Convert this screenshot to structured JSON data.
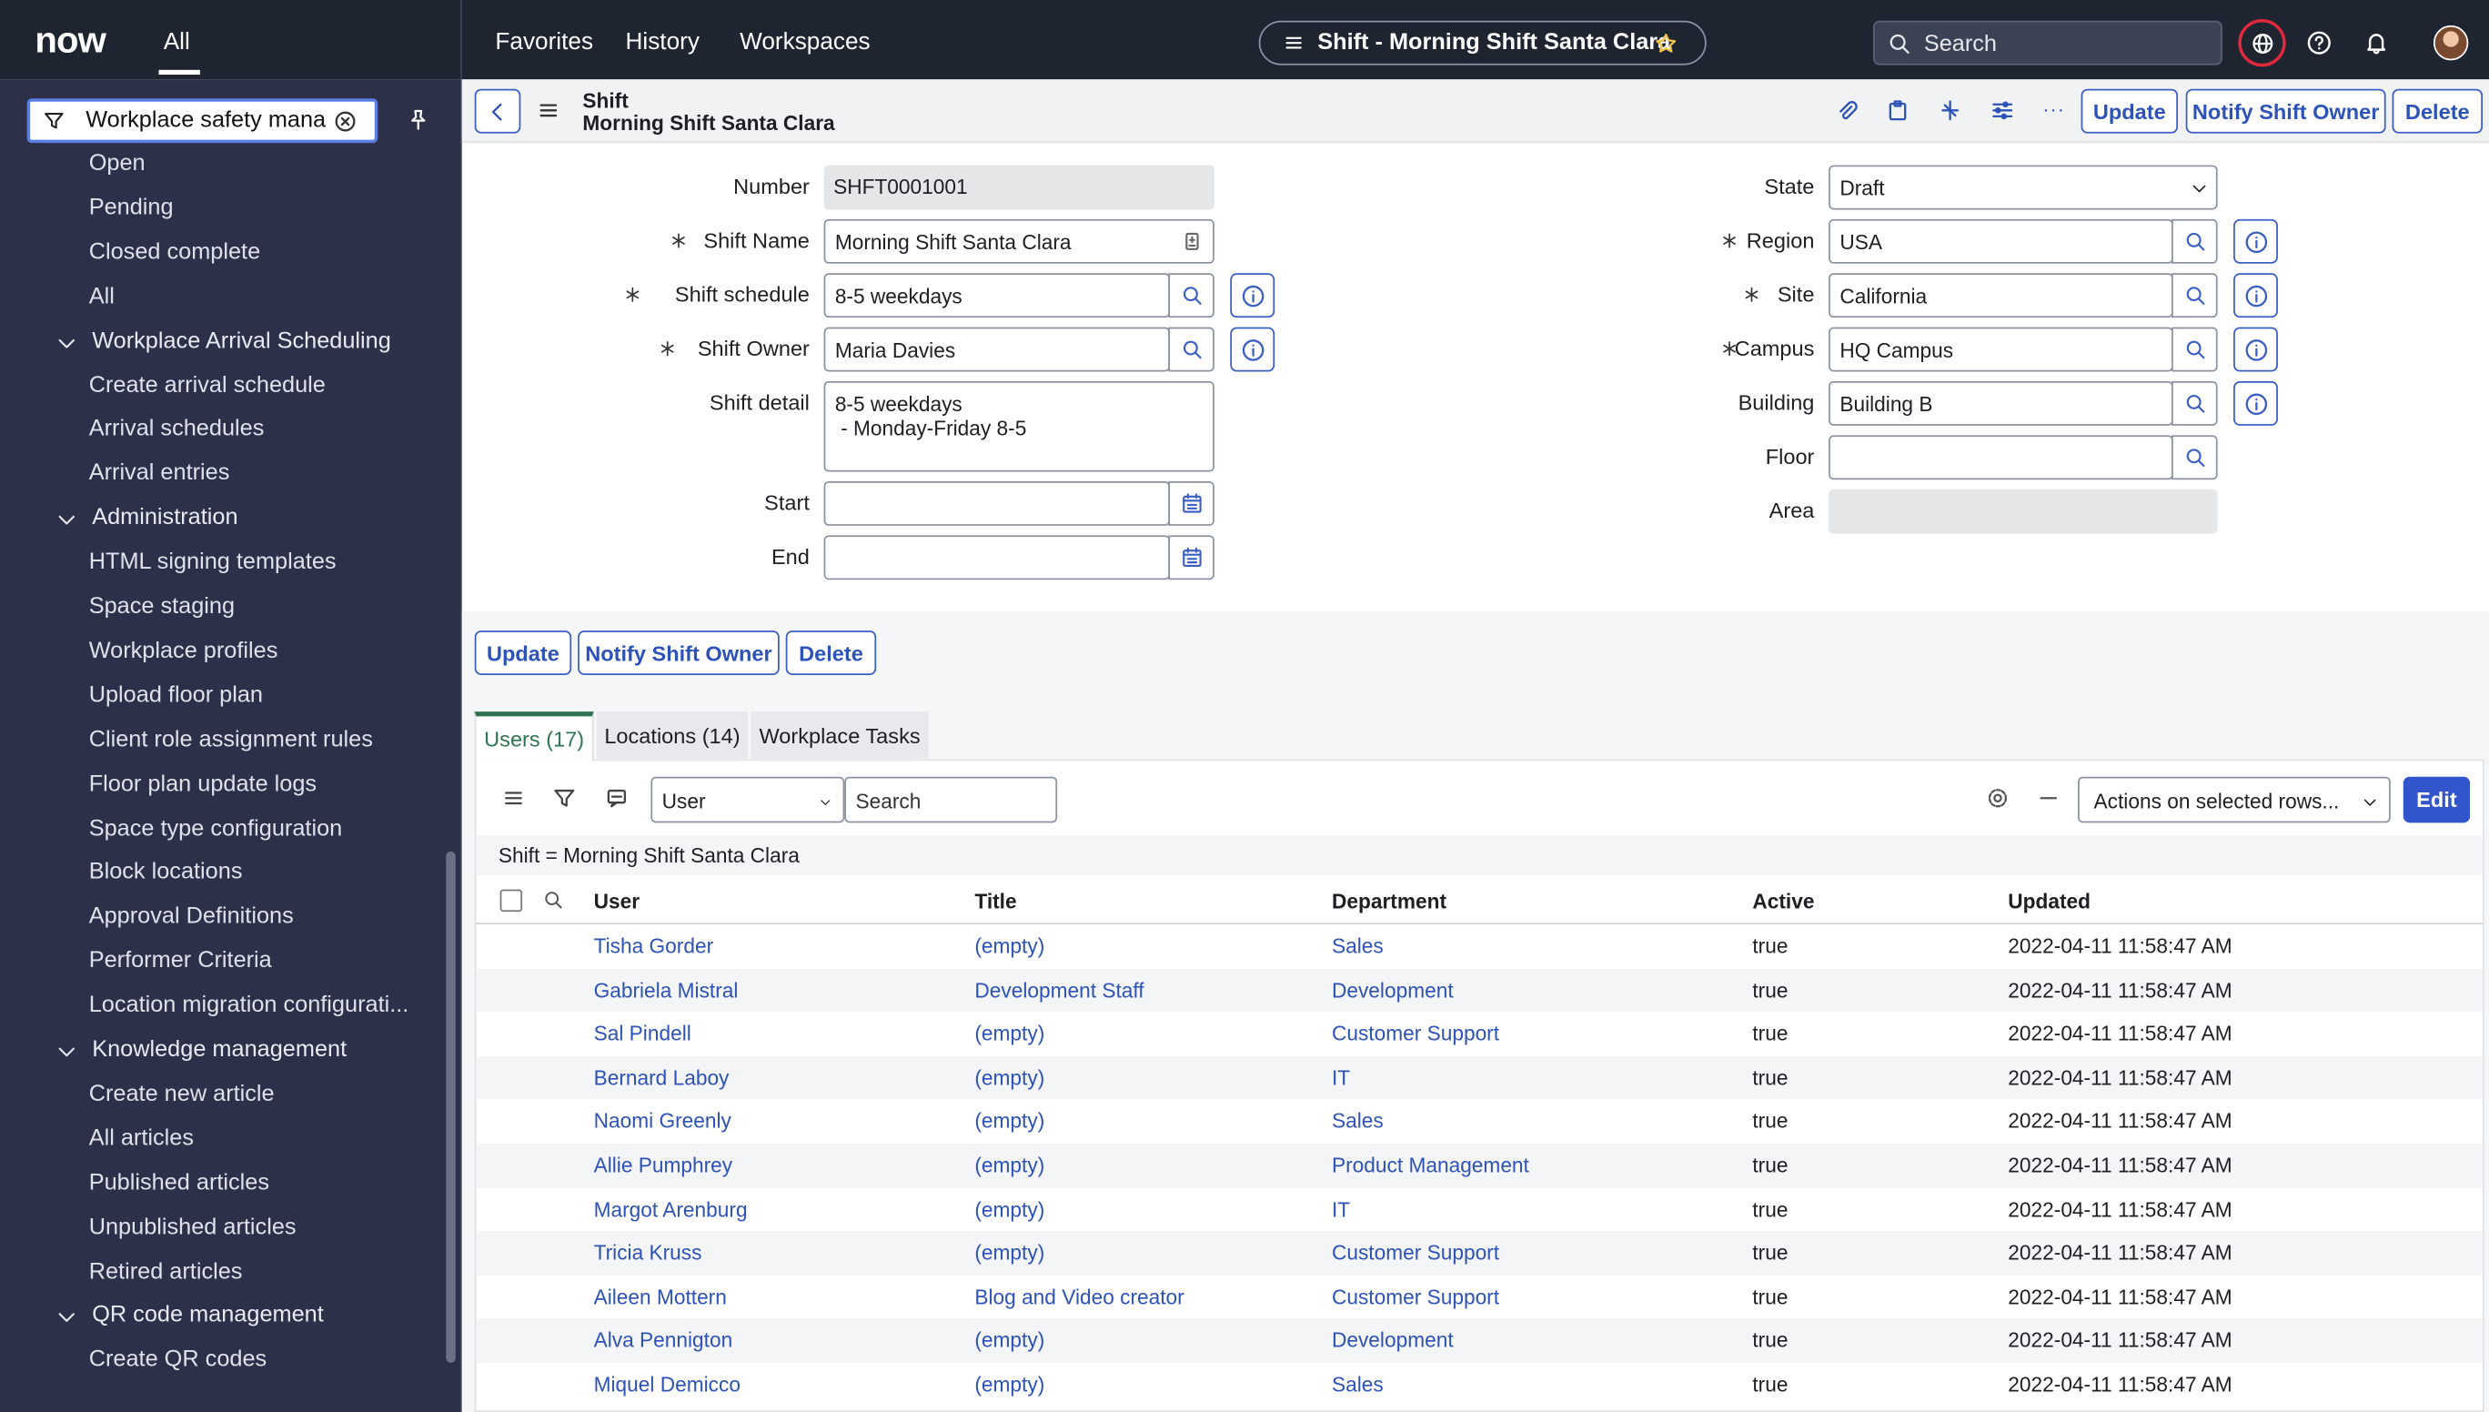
{
  "top_nav": {
    "logo": "now",
    "all": "All",
    "links": [
      "Favorites",
      "History",
      "Workspaces"
    ],
    "record": "Shift - Morning Shift Santa Clara",
    "search": "Search"
  },
  "sidebar": {
    "filter": "Workplace safety mana",
    "items": [
      {
        "label": "Open"
      },
      {
        "label": "Pending"
      },
      {
        "label": "Closed complete"
      },
      {
        "label": "All"
      },
      {
        "label": "Workplace Arrival Scheduling",
        "section": true
      },
      {
        "label": "Create arrival schedule"
      },
      {
        "label": "Arrival schedules"
      },
      {
        "label": "Arrival entries"
      },
      {
        "label": "Administration",
        "section": true
      },
      {
        "label": "HTML signing templates"
      },
      {
        "label": "Space staging"
      },
      {
        "label": "Workplace profiles"
      },
      {
        "label": "Upload floor plan"
      },
      {
        "label": "Client role assignment rules"
      },
      {
        "label": "Floor plan update logs"
      },
      {
        "label": "Space type configuration"
      },
      {
        "label": "Block locations"
      },
      {
        "label": "Approval Definitions"
      },
      {
        "label": "Performer Criteria"
      },
      {
        "label": "Location migration configurati..."
      },
      {
        "label": "Knowledge management",
        "section": true
      },
      {
        "label": "Create new article"
      },
      {
        "label": "All articles"
      },
      {
        "label": "Published articles"
      },
      {
        "label": "Unpublished articles"
      },
      {
        "label": "Retired articles"
      },
      {
        "label": "QR code management",
        "section": true
      },
      {
        "label": "Create QR codes"
      }
    ]
  },
  "header": {
    "table": "Shift",
    "record": "Morning Shift Santa Clara",
    "buttons": [
      "Update",
      "Notify Shift Owner",
      "Delete"
    ]
  },
  "form": {
    "left": [
      {
        "label": "Number",
        "value": "SHFT0001001",
        "control": "readonly"
      },
      {
        "label": "Shift Name",
        "value": "Morning Shift Santa Clara",
        "control": "text-icon",
        "required": true
      },
      {
        "label": "Shift schedule",
        "value": "8-5 weekdays",
        "control": "reference",
        "required": true,
        "info": true
      },
      {
        "label": "Shift Owner",
        "value": "Maria Davies",
        "control": "reference",
        "required": true,
        "info": true
      },
      {
        "label": "Shift detail",
        "value": "8-5 weekdays\n - Monday-Friday 8-5",
        "control": "textarea"
      },
      {
        "label": "Start",
        "control": "date"
      },
      {
        "label": "End",
        "control": "date"
      }
    ],
    "right": [
      {
        "label": "State",
        "value": "Draft",
        "control": "select"
      },
      {
        "label": "Region",
        "value": "USA",
        "control": "reference",
        "required": true,
        "info": true
      },
      {
        "label": "Site",
        "value": "California",
        "control": "reference",
        "required": true,
        "info": true
      },
      {
        "label": "Campus",
        "value": "HQ Campus",
        "control": "reference",
        "required": true,
        "info": true
      },
      {
        "label": "Building",
        "value": "Building B",
        "control": "reference",
        "info": true
      },
      {
        "label": "Floor",
        "control": "reference"
      },
      {
        "label": "Area",
        "control": "readonly"
      }
    ]
  },
  "tabs": [
    "Users (17)",
    "Locations (14)",
    "Workplace Tasks"
  ],
  "list": {
    "field": "User",
    "search": "Search",
    "actions": "Actions on selected rows...",
    "edit": "Edit",
    "breadcrumb": "Shift = Morning Shift Santa Clara",
    "columns": [
      {
        "name": "User",
        "link": true
      },
      {
        "name": "Title",
        "link": true
      },
      {
        "name": "Department",
        "link": true
      },
      {
        "name": "Active"
      },
      {
        "name": "Updated"
      }
    ],
    "rows": [
      [
        "Tisha Gorder",
        "(empty)",
        "Sales",
        "true",
        "2022-04-11 11:58:47 AM"
      ],
      [
        "Gabriela Mistral",
        "Development Staff",
        "Development",
        "true",
        "2022-04-11 11:58:47 AM"
      ],
      [
        "Sal Pindell",
        "(empty)",
        "Customer Support",
        "true",
        "2022-04-11 11:58:47 AM"
      ],
      [
        "Bernard Laboy",
        "(empty)",
        "IT",
        "true",
        "2022-04-11 11:58:47 AM"
      ],
      [
        "Naomi Greenly",
        "(empty)",
        "Sales",
        "true",
        "2022-04-11 11:58:47 AM"
      ],
      [
        "Allie Pumphrey",
        "(empty)",
        "Product Management",
        "true",
        "2022-04-11 11:58:47 AM"
      ],
      [
        "Margot Arenburg",
        "(empty)",
        "IT",
        "true",
        "2022-04-11 11:58:47 AM"
      ],
      [
        "Tricia Kruss",
        "(empty)",
        "Customer Support",
        "true",
        "2022-04-11 11:58:47 AM"
      ],
      [
        "Aileen Mottern",
        "Blog and Video creator",
        "Customer Support",
        "true",
        "2022-04-11 11:58:47 AM"
      ],
      [
        "Alva Pennigton",
        "(empty)",
        "Development",
        "true",
        "2022-04-11 11:58:47 AM"
      ],
      [
        "Miquel Demicco",
        "(empty)",
        "Sales",
        "true",
        "2022-04-11 11:58:47 AM"
      ]
    ]
  }
}
